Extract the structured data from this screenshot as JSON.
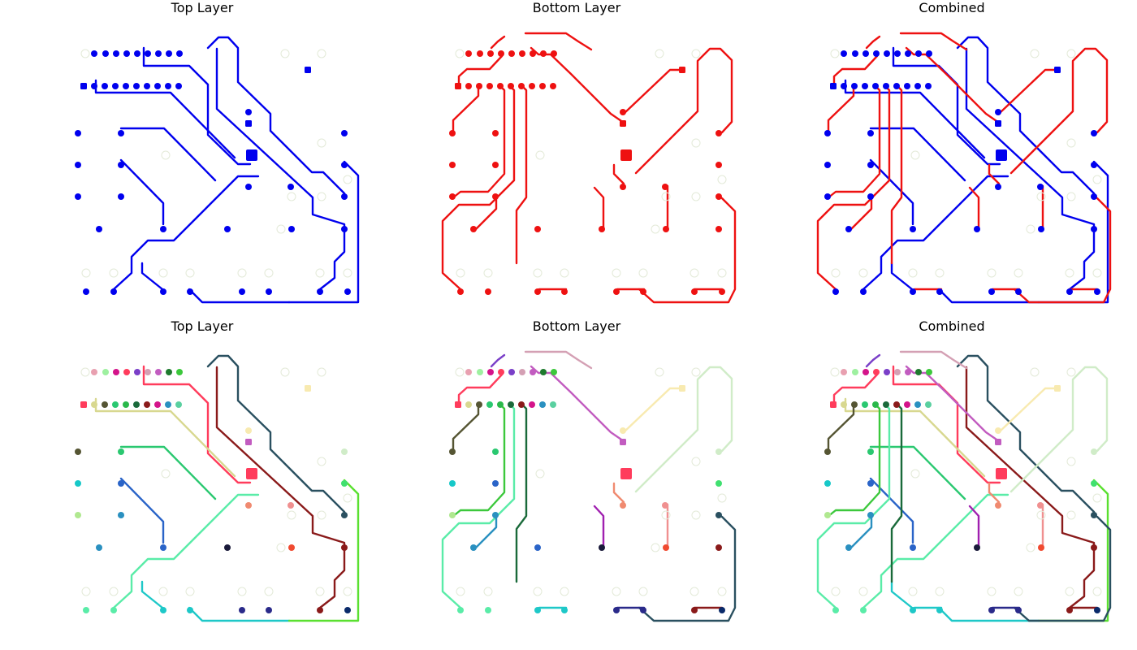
{
  "panels": [
    {
      "title": "Top Layer",
      "mode": "top",
      "palette": "mono"
    },
    {
      "title": "Bottom Layer",
      "mode": "bottom",
      "palette": "mono"
    },
    {
      "title": "Combined",
      "mode": "combined",
      "palette": "mono"
    },
    {
      "title": "Top Layer",
      "mode": "top",
      "palette": "nets"
    },
    {
      "title": "Bottom Layer",
      "mode": "bottom",
      "palette": "nets"
    },
    {
      "title": "Combined",
      "mode": "combined",
      "palette": "nets"
    }
  ],
  "colors": {
    "top_mono": "#0000ee",
    "bottom_mono": "#ee1111",
    "pad_outline": "#e3ead8",
    "background": "#ffffff"
  },
  "net_colors": {
    "pinkred": "#f0455f",
    "rose": "#e8a0b0",
    "mint": "#9ef0a0",
    "magenta": "#d4148a",
    "violet": "#7a3fc8",
    "lightpink": "#d4a0b4",
    "orchid": "#c25cc0",
    "darkgreen": "#1e7a2e",
    "lime": "#3cc83c",
    "red": "#ff3c5c",
    "khaki": "#d8d890",
    "olive": "#555533",
    "emerald": "#2ac870",
    "green": "#2ab84a",
    "forest": "#1a6a3a",
    "maroon": "#8a1a1a",
    "teal": "#2a90c0",
    "slate": "#2a5060",
    "cyan": "#16c8c8",
    "blue": "#2a64c8",
    "sky": "#5ad0a0",
    "pale": "#b0e890",
    "aqua": "#1ec8c8",
    "navy": "#2a2a8a",
    "darknavy": "#0a2a6a",
    "seafoam": "#5aeca8",
    "yellow": "#f8eab0",
    "brightgreen": "#5ae030",
    "salmon": "#f08a70",
    "coral": "#f09090",
    "tomato": "#f04a30",
    "purple": "#a020b0",
    "midnight": "#1a1a3a",
    "palegreen": "#d0ecc8",
    "lightblue": "#8aa8e8",
    "greenish": "#40e070",
    "chartreuse": "#60f040"
  }
}
